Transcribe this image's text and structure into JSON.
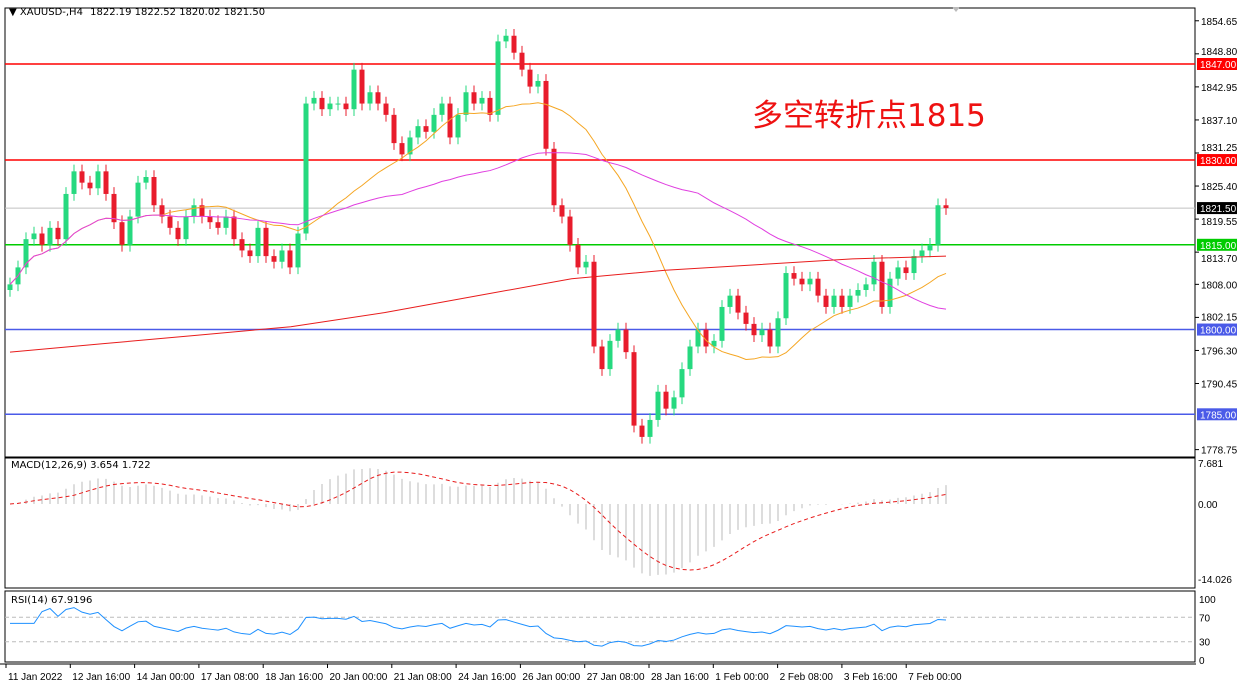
{
  "header": {
    "symbol": "XAUUSD-,H4",
    "ohlc_text": "1822.19 1822.52 1820.02 1821.50"
  },
  "annotation": {
    "text": "多空转折点1815",
    "color": "#ee1111"
  },
  "colors": {
    "bull": "#26d97f",
    "bear": "#e81c2c",
    "ma_fast": "#f5a623",
    "ma_mid": "#e040e0",
    "ma_slow": "#e81c1c",
    "level_red": "#ff0000",
    "level_green": "#00cc00",
    "level_blue": "#4a5ae8"
  },
  "chart_data": [
    {
      "type": "candlestick",
      "title": "XAUUSD-,H4",
      "ylim": [
        1776,
        1858
      ],
      "y_ticks": [
        "1854.65",
        "1848.80",
        "1842.95",
        "1837.10",
        "1831.25",
        "1825.40",
        "1819.55",
        "1813.70",
        "1808.00",
        "1802.15",
        "1796.30",
        "1790.45",
        "1778.75"
      ],
      "x_ticks": [
        "11 Jan 2022",
        "12 Jan 16:00",
        "14 Jan 00:00",
        "17 Jan 08:00",
        "18 Jan 16:00",
        "20 Jan 00:00",
        "21 Jan 08:00",
        "24 Jan 16:00",
        "26 Jan 00:00",
        "27 Jan 08:00",
        "28 Jan 16:00",
        "1 Feb 00:00",
        "2 Feb 08:00",
        "3 Feb 16:00",
        "7 Feb 00:00"
      ],
      "close": [
        1808,
        1811,
        1816,
        1817,
        1815,
        1818,
        1816,
        1824,
        1828,
        1826,
        1825,
        1828,
        1824,
        1819,
        1815,
        1820,
        1826,
        1827,
        1822,
        1820,
        1818,
        1816,
        1820,
        1822,
        1820,
        1819,
        1818,
        1820,
        1816,
        1814,
        1813,
        1818,
        1813,
        1812,
        1814,
        1811,
        1817,
        1840,
        1841,
        1839,
        1840,
        1840,
        1839,
        1846,
        1840,
        1842,
        1840,
        1838,
        1833,
        1831,
        1834,
        1836,
        1835,
        1838,
        1840,
        1834,
        1838,
        1842,
        1840,
        1841,
        1838,
        1851,
        1852,
        1849,
        1846,
        1843,
        1844,
        1832,
        1822,
        1820,
        1815,
        1811,
        1812,
        1797,
        1793,
        1798,
        1800,
        1796,
        1783,
        1781,
        1784,
        1789,
        1786,
        1788,
        1793,
        1797,
        1800,
        1797,
        1798,
        1804,
        1806,
        1803,
        1801,
        1799,
        1800,
        1797,
        1802,
        1810,
        1809,
        1808,
        1809,
        1806,
        1804,
        1806,
        1804,
        1806,
        1807,
        1808,
        1812,
        1804,
        1809,
        1811,
        1810,
        1813,
        1814,
        1815,
        1822,
        1821.5
      ],
      "last_price": {
        "value": 1821.5,
        "label": "1821.50"
      },
      "levels": [
        {
          "value": 1847,
          "label": "1847.00",
          "color": "#ff0000"
        },
        {
          "value": 1830,
          "label": "1830.00",
          "color": "#ff0000"
        },
        {
          "value": 1815,
          "label": "1815.00",
          "color": "#00cc00"
        },
        {
          "value": 1800,
          "label": "1800.00",
          "color": "#4a5ae8"
        },
        {
          "value": 1785,
          "label": "1785.00",
          "color": "#4a5ae8"
        }
      ],
      "slow_ma": [
        1796,
        1797.5,
        1799,
        1800.5,
        1803,
        1806,
        1809,
        1810.5,
        1811.5,
        1812.5,
        1813
      ]
    },
    {
      "type": "bar+line",
      "title": "MACD(12,26,9) 3.654 1.722",
      "ylim": [
        -14.026,
        7.681
      ],
      "y_ticks": [
        "7.681",
        "0.00",
        "-14.026"
      ]
    },
    {
      "type": "line",
      "title": "RSI(14) 67.9196",
      "ylim": [
        0,
        100
      ],
      "y_ticks": [
        "100",
        "70",
        "30",
        "0"
      ],
      "levels": [
        70,
        30
      ]
    }
  ]
}
